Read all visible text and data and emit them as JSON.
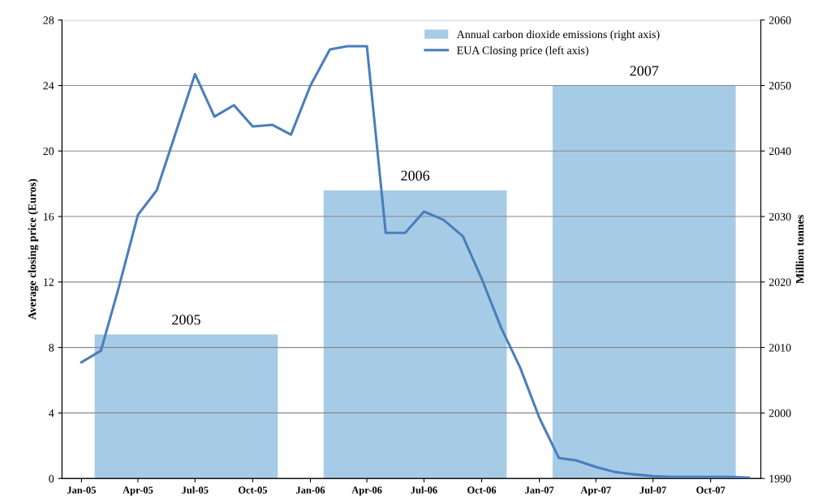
{
  "chart_data": {
    "type": "line",
    "xlabel": null,
    "ylabel": "Average closing price (Euros)",
    "y2label": "Million tonnes",
    "x": [
      "2005-01",
      "2005-02",
      "2005-03",
      "2005-04",
      "2005-05",
      "2005-06",
      "2005-07",
      "2005-08",
      "2005-09",
      "2005-10",
      "2005-11",
      "2005-12",
      "2006-01",
      "2006-02",
      "2006-03",
      "2006-04",
      "2006-05",
      "2006-06",
      "2006-07",
      "2006-08",
      "2006-09",
      "2006-10",
      "2006-11",
      "2006-12",
      "2007-01",
      "2007-02",
      "2007-03",
      "2007-04",
      "2007-05",
      "2007-06",
      "2007-07",
      "2007-08",
      "2007-09",
      "2007-10",
      "2007-11",
      "2007-12"
    ],
    "series": [
      {
        "name": "Annual carbon dioxide emissions (right axis)",
        "type": "bar",
        "axis": "y2",
        "color": "#a6cbe6",
        "x": [
          "2005-06-17",
          "2006-06-17",
          "2007-06-17"
        ],
        "values": [
          2012,
          2034,
          2050
        ]
      },
      {
        "name": "EUA Closing price (left axis)",
        "color": "#4a7ebb",
        "values": [
          7.1,
          7.8,
          11.6,
          16.1,
          17.6,
          21.2,
          24.7,
          22.1,
          22.8,
          21.5,
          21.6,
          21.0,
          24.0,
          26.2,
          26.4,
          26.4,
          15.0,
          15.0,
          16.3,
          15.8,
          14.8,
          12.2,
          9.2,
          6.8,
          3.7,
          1.25,
          1.1,
          0.7,
          0.4,
          0.25,
          0.15,
          0.1,
          0.1,
          0.1,
          0.1,
          0.05
        ]
      }
    ],
    "xlim": [
      "2004-12-01",
      "2007-12-20"
    ],
    "xticks": [
      {
        "value": "2005-01",
        "label": "Jan-05"
      },
      {
        "value": "2005-04",
        "label": "Apr-05"
      },
      {
        "value": "2005-07",
        "label": "Jul-05"
      },
      {
        "value": "2005-10",
        "label": "Oct-05"
      },
      {
        "value": "2006-01",
        "label": "Jan-06"
      },
      {
        "value": "2006-04",
        "label": "Apr-06"
      },
      {
        "value": "2006-07",
        "label": "Jul-06"
      },
      {
        "value": "2006-10",
        "label": "Oct-06"
      },
      {
        "value": "2007-01",
        "label": "Jan-07"
      },
      {
        "value": "2007-04",
        "label": "Apr-07"
      },
      {
        "value": "2007-07",
        "label": "Jul-07"
      },
      {
        "value": "2007-10",
        "label": "Oct-07"
      }
    ],
    "ylim": [
      0,
      28
    ],
    "yticks": [
      0,
      4,
      8,
      12,
      16,
      20,
      24,
      28
    ],
    "y2lim": [
      1990,
      2060
    ],
    "y2ticks": [
      1990,
      2000,
      2010,
      2020,
      2030,
      2040,
      2050,
      2060
    ],
    "annotations": [
      "2005",
      "2006",
      "2007"
    ],
    "grid": "y",
    "legend": "top right",
    "marker": "none",
    "line_style": "solid"
  }
}
